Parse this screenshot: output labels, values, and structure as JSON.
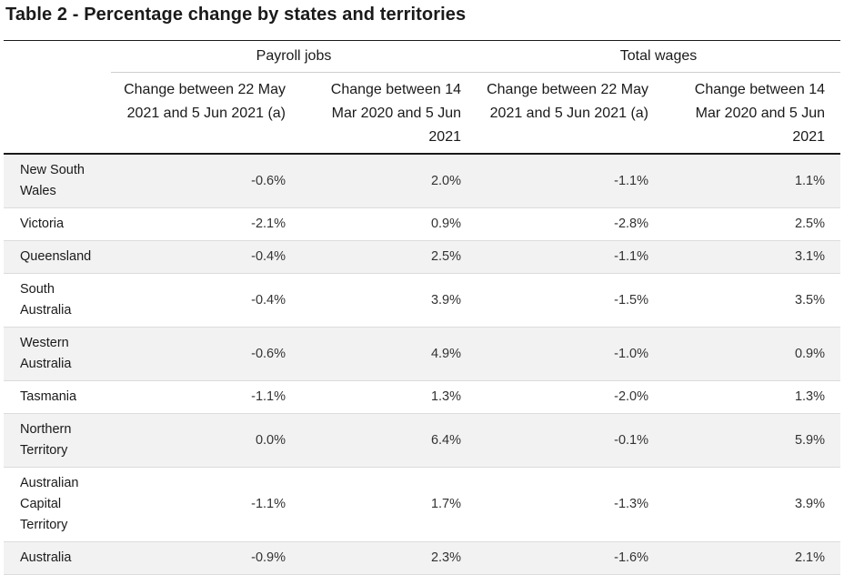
{
  "title": "Table 2 - Percentage change by states and territories",
  "groups": {
    "payroll": "Payroll jobs",
    "wages": "Total wages"
  },
  "columns": [
    "Change between 22 May 2021 and 5 Jun 2021 (a)",
    "Change between 14 Mar 2020 and 5 Jun 2021",
    "Change between 22 May 2021 and 5 Jun 2021 (a)",
    "Change between 14 Mar 2020 and 5 Jun 2021"
  ],
  "rows": [
    {
      "state": "New South Wales",
      "values": [
        "-0.6%",
        "2.0%",
        "-1.1%",
        "1.1%"
      ]
    },
    {
      "state": "Victoria",
      "values": [
        "-2.1%",
        "0.9%",
        "-2.8%",
        "2.5%"
      ]
    },
    {
      "state": "Queensland",
      "values": [
        "-0.4%",
        "2.5%",
        "-1.1%",
        "3.1%"
      ]
    },
    {
      "state": "South Australia",
      "values": [
        "-0.4%",
        "3.9%",
        "-1.5%",
        "3.5%"
      ]
    },
    {
      "state": "Western Australia",
      "values": [
        "-0.6%",
        "4.9%",
        "-1.0%",
        "0.9%"
      ]
    },
    {
      "state": "Tasmania",
      "values": [
        "-1.1%",
        "1.3%",
        "-2.0%",
        "1.3%"
      ]
    },
    {
      "state": "Northern Territory",
      "values": [
        "0.0%",
        "6.4%",
        "-0.1%",
        "5.9%"
      ]
    },
    {
      "state": "Australian Capital Territory",
      "values": [
        "-1.1%",
        "1.7%",
        "-1.3%",
        "3.9%"
      ]
    },
    {
      "state": "Australia",
      "values": [
        "-0.9%",
        "2.3%",
        "-1.6%",
        "2.1%"
      ]
    }
  ]
}
